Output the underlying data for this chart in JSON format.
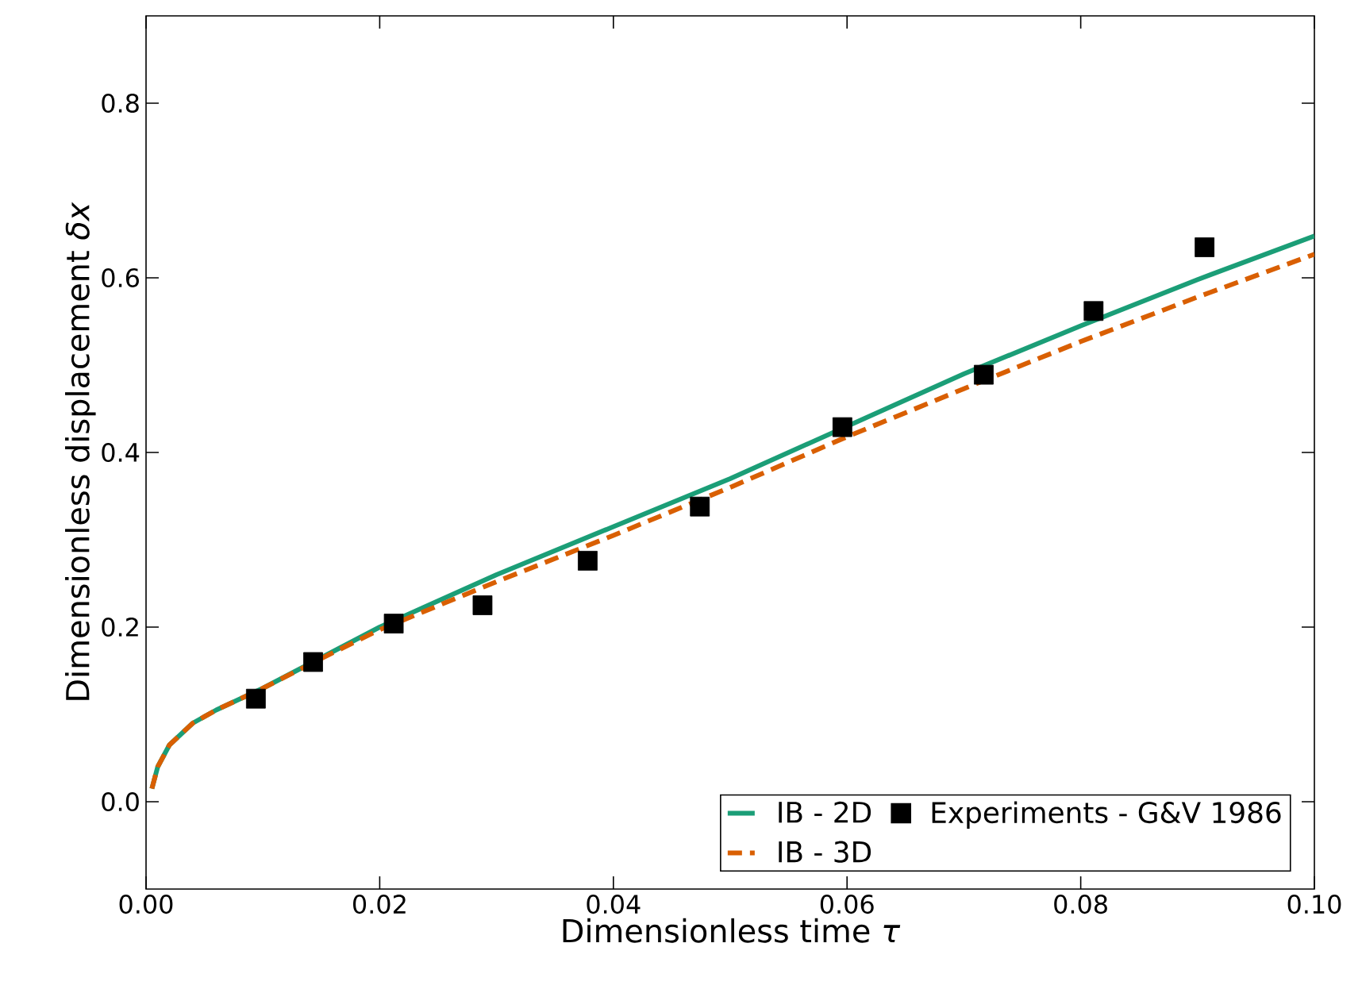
{
  "chart_data": {
    "type": "line",
    "xlabel": "Dimensionless time *τ*",
    "ylabel": "Dimensionless displacement *δx*",
    "xlim": [
      0,
      0.1
    ],
    "ylim": [
      -0.1,
      0.9
    ],
    "xticks": [
      {
        "value": 0,
        "label": "0.00"
      },
      0.02,
      0.04,
      0.06,
      0.08,
      {
        "value": 0.1,
        "label": "0.10"
      }
    ],
    "yticks": [
      {
        "value": 0,
        "label": "0.0"
      },
      0.2,
      0.4,
      0.6,
      0.8
    ],
    "legend": "bottom right",
    "grid": false,
    "series": [
      {
        "name": "IB - 2D",
        "color": "#1b9e77",
        "line_style": "solid",
        "marker": "none",
        "x": [
          0.0005,
          0.001,
          0.002,
          0.004,
          0.006,
          0.01,
          0.015,
          0.02,
          0.03,
          0.04,
          0.05,
          0.06,
          0.07,
          0.08,
          0.09,
          0.1
        ],
        "values": [
          0.015,
          0.04,
          0.065,
          0.09,
          0.105,
          0.13,
          0.165,
          0.2,
          0.26,
          0.315,
          0.37,
          0.43,
          0.49,
          0.545,
          0.598,
          0.648
        ]
      },
      {
        "name": "IB - 3D",
        "color": "#d95f02",
        "line_style": "dashed",
        "marker": "none",
        "x": [
          0.0005,
          0.001,
          0.002,
          0.004,
          0.006,
          0.01,
          0.015,
          0.02,
          0.03,
          0.04,
          0.05,
          0.06,
          0.07,
          0.08,
          0.09,
          0.1
        ],
        "values": [
          0.015,
          0.04,
          0.065,
          0.09,
          0.105,
          0.13,
          0.164,
          0.197,
          0.252,
          0.305,
          0.36,
          0.418,
          0.473,
          0.527,
          0.578,
          0.627
        ]
      },
      {
        "name": "Experiments - G&V 1986",
        "type": "scatter",
        "color": "#000000",
        "marker": "square",
        "x": [
          0.0094,
          0.0143,
          0.0212,
          0.0288,
          0.0378,
          0.0474,
          0.0596,
          0.0717,
          0.0811,
          0.0906
        ],
        "values": [
          0.118,
          0.16,
          0.204,
          0.225,
          0.276,
          0.338,
          0.429,
          0.489,
          0.562,
          0.635
        ]
      }
    ]
  }
}
